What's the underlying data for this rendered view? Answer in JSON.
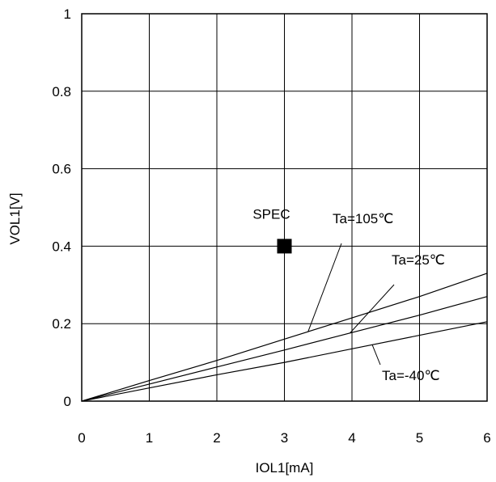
{
  "chart_data": {
    "type": "line",
    "xlabel": "IOL1[mA]",
    "ylabel": "VOL1[V]",
    "xlim": [
      0,
      6
    ],
    "ylim": [
      0,
      1
    ],
    "xticks": [
      "0",
      "1",
      "2",
      "3",
      "4",
      "5",
      "6"
    ],
    "yticks": [
      "0",
      "0.2",
      "0.4",
      "0.6",
      "0.8",
      "1"
    ],
    "grid": true,
    "series": [
      {
        "name": "Ta=105℃",
        "x": [
          0,
          1,
          2,
          3,
          4,
          5,
          6
        ],
        "y": [
          0,
          0.053,
          0.105,
          0.16,
          0.215,
          0.27,
          0.33
        ]
      },
      {
        "name": "Ta=25℃",
        "x": [
          0,
          1,
          2,
          3,
          4,
          5,
          6
        ],
        "y": [
          0,
          0.044,
          0.088,
          0.132,
          0.177,
          0.222,
          0.27
        ]
      },
      {
        "name": "Ta=-40℃",
        "x": [
          0,
          1,
          2,
          3,
          4,
          5,
          6
        ],
        "y": [
          0,
          0.034,
          0.068,
          0.1,
          0.135,
          0.17,
          0.205
        ]
      }
    ],
    "spec_point": {
      "label": "SPEC",
      "x": 3,
      "y": 0.4
    }
  }
}
